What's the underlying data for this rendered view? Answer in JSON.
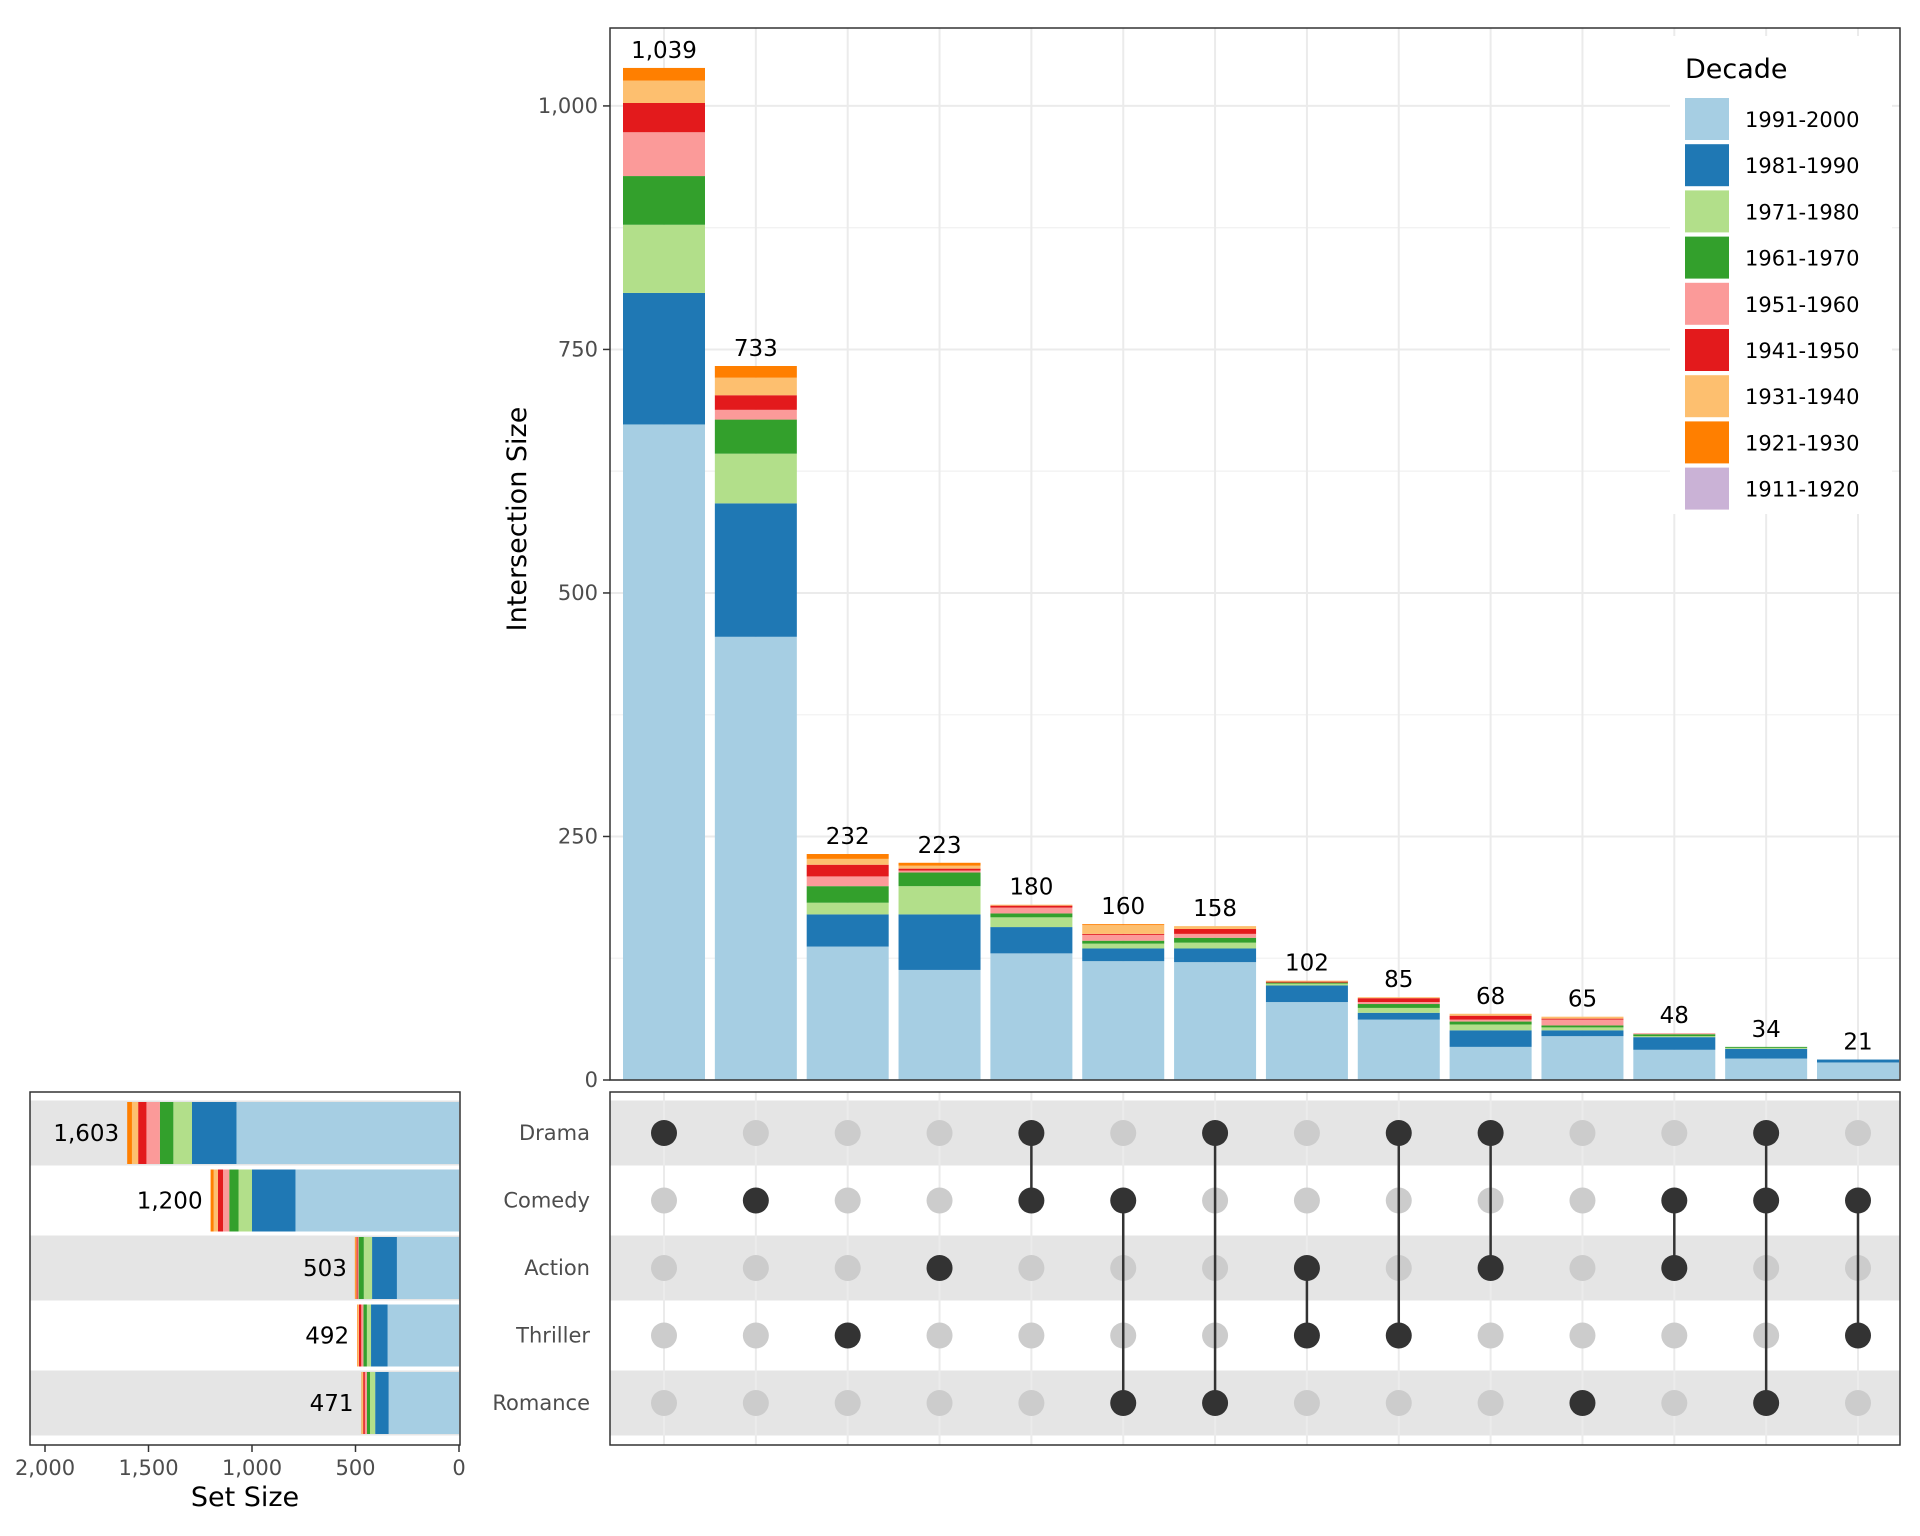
{
  "chart_data": {
    "type": "upset",
    "intersection_panel": {
      "type": "bar",
      "ylabel": "Intersection Size",
      "ylim": [
        0,
        1080
      ],
      "yticks": [
        0,
        250,
        500,
        750,
        1000
      ],
      "ytick_labels": [
        "0",
        "250",
        "500",
        "750",
        "1,000"
      ],
      "grid": true,
      "intersections": [
        {
          "sets": [
            "Drama"
          ],
          "total": 1039,
          "label": "1,039",
          "values": [
            673,
            135,
            70,
            50,
            45,
            30,
            23,
            13,
            0
          ]
        },
        {
          "sets": [
            "Comedy"
          ],
          "total": 733,
          "label": "733",
          "values": [
            455,
            137,
            51,
            35,
            10,
            15,
            18,
            12,
            0
          ]
        },
        {
          "sets": [
            "Thriller"
          ],
          "total": 232,
          "label": "232",
          "values": [
            137,
            33,
            12,
            17,
            10,
            12,
            6,
            5,
            0
          ]
        },
        {
          "sets": [
            "Action"
          ],
          "total": 223,
          "label": "223",
          "values": [
            113,
            57,
            29,
            14,
            2,
            2,
            3,
            3,
            0
          ]
        },
        {
          "sets": [
            "Drama",
            "Comedy"
          ],
          "total": 180,
          "label": "180",
          "values": [
            130,
            27,
            10,
            4,
            6,
            2,
            1,
            0,
            0
          ]
        },
        {
          "sets": [
            "Comedy",
            "Romance"
          ],
          "total": 160,
          "label": "160",
          "values": [
            122,
            13,
            5,
            3,
            6,
            1,
            9,
            1,
            0
          ]
        },
        {
          "sets": [
            "Drama",
            "Romance"
          ],
          "total": 158,
          "label": "158",
          "values": [
            121,
            14,
            6,
            5,
            4,
            5,
            3,
            0,
            0
          ]
        },
        {
          "sets": [
            "Action",
            "Thriller"
          ],
          "total": 102,
          "label": "102",
          "values": [
            80,
            17,
            2,
            1,
            0,
            1,
            1,
            0,
            0
          ]
        },
        {
          "sets": [
            "Drama",
            "Thriller"
          ],
          "total": 85,
          "label": "85",
          "values": [
            62,
            7,
            5,
            4,
            2,
            4,
            1,
            0,
            0
          ]
        },
        {
          "sets": [
            "Drama",
            "Action"
          ],
          "total": 68,
          "label": "68",
          "values": [
            34,
            17,
            6,
            3,
            2,
            4,
            2,
            0,
            0
          ]
        },
        {
          "sets": [
            "Romance"
          ],
          "total": 65,
          "label": "65",
          "values": [
            45,
            6,
            3,
            2,
            6,
            1,
            2,
            0,
            0
          ]
        },
        {
          "sets": [
            "Comedy",
            "Action"
          ],
          "total": 48,
          "label": "48",
          "values": [
            31,
            13,
            1,
            2,
            1,
            0,
            0,
            0,
            0
          ]
        },
        {
          "sets": [
            "Drama",
            "Comedy",
            "Romance"
          ],
          "total": 34,
          "label": "34",
          "values": [
            22,
            10,
            1,
            1,
            0,
            0,
            0,
            0,
            0
          ]
        },
        {
          "sets": [
            "Comedy",
            "Thriller"
          ],
          "total": 21,
          "label": "21",
          "values": [
            18,
            3,
            0,
            0,
            0,
            0,
            0,
            0,
            0
          ]
        }
      ]
    },
    "legend": {
      "title": "Decade",
      "position": "top-right",
      "entries": [
        "1991-2000",
        "1981-1990",
        "1971-1980",
        "1961-1970",
        "1951-1960",
        "1941-1950",
        "1931-1940",
        "1921-1930",
        "1911-1920"
      ],
      "colors": [
        "#a6cee3",
        "#1f78b4",
        "#b2df8a",
        "#33a02c",
        "#fb9a99",
        "#e31a1c",
        "#fdbf6f",
        "#ff7f00",
        "#cab2d6"
      ]
    },
    "set_size_panel": {
      "type": "bar",
      "orientation": "horizontal-reversed",
      "xlabel": "Set Size",
      "xlim": [
        2000,
        0
      ],
      "xticks": [
        2000,
        1500,
        1000,
        500,
        0
      ],
      "xtick_labels": [
        "2,000",
        "1,500",
        "1,000",
        "500",
        "0"
      ],
      "sets": [
        {
          "name": "Drama",
          "total": 1603,
          "label": "1,603",
          "values": [
            1075,
            215,
            90,
            65,
            65,
            40,
            30,
            23,
            0
          ]
        },
        {
          "name": "Comedy",
          "total": 1200,
          "label": "1,200",
          "values": [
            790,
            210,
            65,
            45,
            30,
            25,
            20,
            15,
            0
          ]
        },
        {
          "name": "Action",
          "total": 503,
          "label": "503",
          "values": [
            300,
            120,
            40,
            25,
            5,
            5,
            5,
            3,
            0
          ]
        },
        {
          "name": "Thriller",
          "total": 492,
          "label": "492",
          "values": [
            345,
            80,
            20,
            17,
            10,
            12,
            5,
            3,
            0
          ]
        },
        {
          "name": "Romance",
          "total": 471,
          "label": "471",
          "values": [
            340,
            65,
            25,
            15,
            10,
            8,
            6,
            2,
            0
          ]
        }
      ]
    },
    "matrix": {
      "active_color": "#333333",
      "inactive_color": "#cccccc",
      "stripe_color": "#e5e5e5"
    }
  }
}
